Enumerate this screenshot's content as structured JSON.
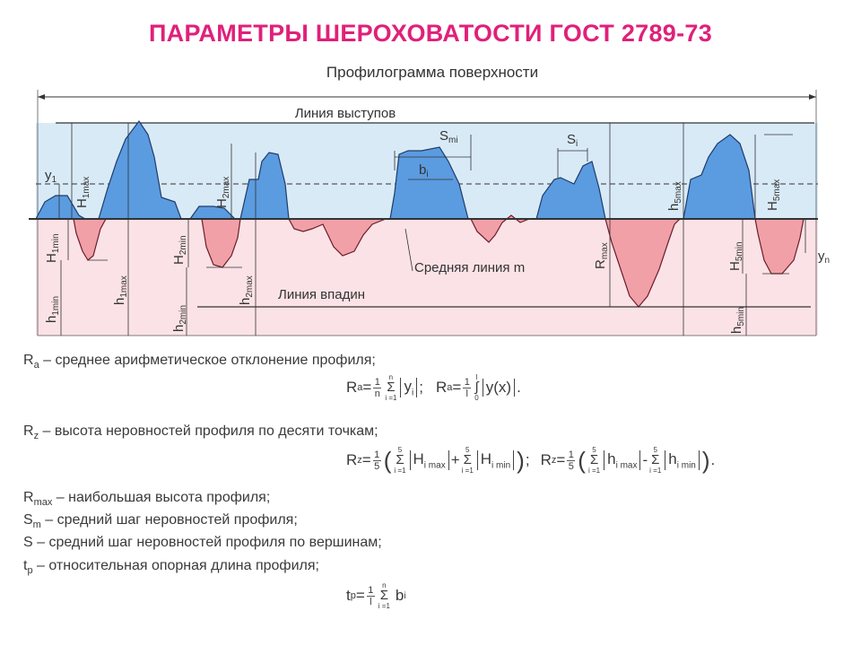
{
  "title": "ПАРАМЕТРЫ ШЕРОХОВАТОСТИ ГОСТ 2789-73",
  "colors": {
    "title": "#e0207a",
    "peak_fill": "#5b9be0",
    "valley_fill": "#f2a0a8",
    "upper_band": "#d9eaf7",
    "lower_band": "#fbe2e6"
  },
  "diagram": {
    "heading": "Профилограмма поверхности",
    "line_peaks": "Линия выступов",
    "line_valleys": "Линия впадин",
    "mean_line": "Средняя линия m",
    "labels": {
      "y1": "y",
      "y1_sub": "1",
      "H1max": "H",
      "H1max_sub": "1max",
      "H1min": "H",
      "H1min_sub": "1min",
      "h1min": "h",
      "h1min_sub": "1min",
      "h1max": "h",
      "h1max_sub": "1max",
      "H2max": "H",
      "H2max_sub": "2max",
      "H2min": "H",
      "H2min_sub": "2min",
      "h2min": "h",
      "h2min_sub": "2min",
      "h2max": "h",
      "h2max_sub": "2max",
      "Smi": "S",
      "Smi_sub": "mi",
      "bi": "b",
      "bi_sub": "i",
      "Si": "S",
      "Si_sub": "i",
      "Rmax": "R",
      "Rmax_sub": "max",
      "h5max": "h",
      "h5max_sub": "5max",
      "H5max": "H",
      "H5max_sub": "5max",
      "H5min": "H",
      "H5min_sub": "5min",
      "h5min": "h",
      "h5min_sub": "5min",
      "yn": "y",
      "yn_sub": "n"
    }
  },
  "definitions": {
    "ra_sym": "R",
    "ra_sub": "a",
    "ra_text": " – среднее арифметическое отклонение профиля;",
    "rz_sym": "R",
    "rz_sub": "z",
    "rz_text": " – высота неровностей профиля по десяти точкам;",
    "rmax_sym": "R",
    "rmax_sub": "max",
    "rmax_text": " – наибольшая высота профиля;",
    "sm_sym": "S",
    "sm_sub": "m",
    "sm_text": " – средний шаг неровностей профиля;",
    "s_text": "S – средний шаг неровностей профиля по вершинам;",
    "tp_sym": "t",
    "tp_sub": "p",
    "tp_text": " – относительная опорная длина профиля;"
  },
  "formulas": {
    "one": "1",
    "n": "n",
    "l": "l",
    "five": "5",
    "i1": "i =1",
    "sum_top_n": "n",
    "sum_top_5": "5",
    "ra_lhs": "R",
    "ra_lhs_sub": "a",
    "eq": " = ",
    "yi": "y",
    "yi_sub": "i",
    "sep": ";",
    "yx": "y(x)",
    "int_low": "0",
    "int_high": "l",
    "rz_lhs": "R",
    "rz_lhs_sub": "z",
    "Himax": "H",
    "Himax_sub": "i max",
    "Himin": "H",
    "Himin_sub": "i min",
    "himax": "h",
    "himax_sub": "i max",
    "himin": "h",
    "himin_sub": "i min",
    "plus": "+",
    "minus": "-",
    "tp_lhs": "t",
    "tp_lhs_sub": "p",
    "bi": "b",
    "bi_sub": "i",
    "dot": "."
  }
}
